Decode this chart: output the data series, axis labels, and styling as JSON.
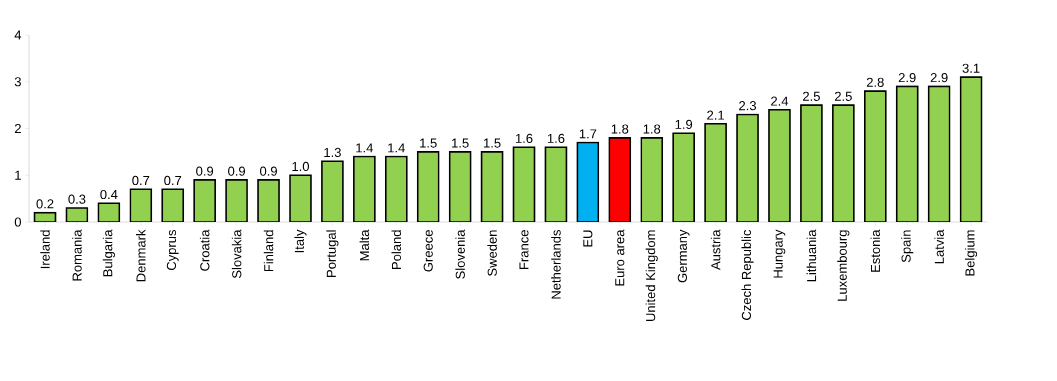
{
  "chart_data": {
    "type": "bar",
    "categories": [
      "Ireland",
      "Romania",
      "Bulgaria",
      "Denmark",
      "Cyprus",
      "Croatia",
      "Slovakia",
      "Finland",
      "Italy",
      "Portugal",
      "Malta",
      "Poland",
      "Greece",
      "Slovenia",
      "Sweden",
      "France",
      "Netherlands",
      "EU",
      "Euro area",
      "United Kingdom",
      "Germany",
      "Austria",
      "Czech Republic",
      "Hungary",
      "Lithuania",
      "Luxembourg",
      "Estonia",
      "Spain",
      "Latvia",
      "Belgium"
    ],
    "values": [
      0.2,
      0.3,
      0.4,
      0.7,
      0.7,
      0.9,
      0.9,
      0.9,
      1.0,
      1.3,
      1.4,
      1.4,
      1.5,
      1.5,
      1.5,
      1.6,
      1.6,
      1.7,
      1.8,
      1.8,
      1.9,
      2.1,
      2.3,
      2.4,
      2.5,
      2.5,
      2.8,
      2.9,
      2.9,
      3.1
    ],
    "colors": [
      "#92d050",
      "#92d050",
      "#92d050",
      "#92d050",
      "#92d050",
      "#92d050",
      "#92d050",
      "#92d050",
      "#92d050",
      "#92d050",
      "#92d050",
      "#92d050",
      "#92d050",
      "#92d050",
      "#92d050",
      "#92d050",
      "#92d050",
      "#00b0f0",
      "#ff0000",
      "#92d050",
      "#92d050",
      "#92d050",
      "#92d050",
      "#92d050",
      "#92d050",
      "#92d050",
      "#92d050",
      "#92d050",
      "#92d050",
      "#92d050"
    ],
    "ylim": [
      0,
      4
    ],
    "yticks": [
      0,
      1,
      2,
      3,
      4
    ],
    "value_labels": [
      "0.2",
      "0.3",
      "0.4",
      "0.7",
      "0.7",
      "0.9",
      "0.9",
      "0.9",
      "1.0",
      "1.3",
      "1.4",
      "1.4",
      "1.5",
      "1.5",
      "1.5",
      "1.6",
      "1.6",
      "1.7",
      "1.8",
      "1.8",
      "1.9",
      "2.1",
      "2.3",
      "2.4",
      "2.5",
      "2.5",
      "2.8",
      "2.9",
      "2.9",
      "3.1"
    ]
  }
}
